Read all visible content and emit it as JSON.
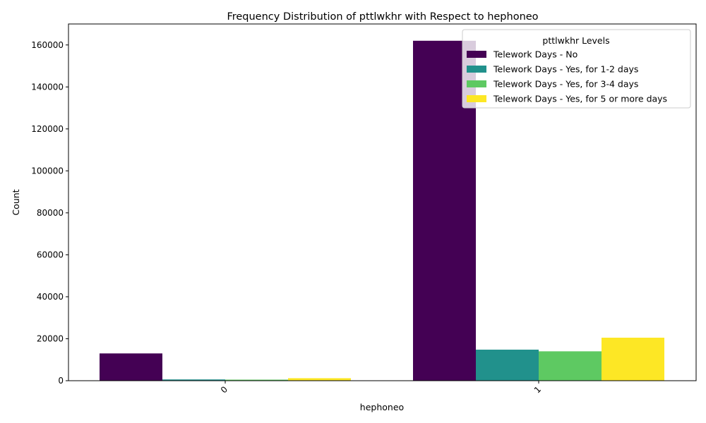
{
  "chart_data": {
    "type": "bar",
    "title": "Frequency Distribution of pttlwkhr with Respect to hephoneo",
    "xlabel": "hephoneo",
    "ylabel": "Count",
    "categories": [
      "0",
      "1"
    ],
    "ylim": [
      0,
      170000
    ],
    "yticks": [
      0,
      20000,
      40000,
      60000,
      80000,
      100000,
      120000,
      140000,
      160000
    ],
    "grid": false,
    "legend": {
      "title": "pttlwkhr Levels",
      "placement": "top-right"
    },
    "series": [
      {
        "name": "Telework Days - No",
        "color": "#440154",
        "values": [
          13000,
          162000
        ]
      },
      {
        "name": "Telework Days - Yes, for 1-2 days",
        "color": "#21918c",
        "values": [
          600,
          14800
        ]
      },
      {
        "name": "Telework Days - Yes, for 3-4 days",
        "color": "#5ec962",
        "values": [
          500,
          14000
        ]
      },
      {
        "name": "Telework Days - Yes, for 5 or more days",
        "color": "#fde725",
        "values": [
          1200,
          20500
        ]
      }
    ]
  }
}
